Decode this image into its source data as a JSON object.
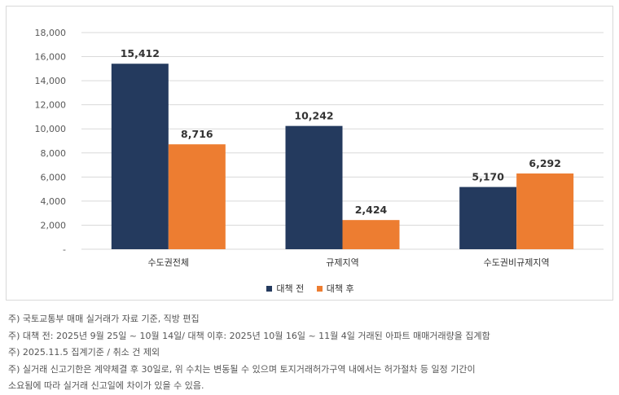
{
  "chart_data": {
    "type": "bar",
    "categories": [
      "수도권전체",
      "규제지역",
      "수도권비규제지역"
    ],
    "series": [
      {
        "name": "대책 전",
        "values": [
          15412,
          10242,
          5170
        ],
        "color": "#243a5e"
      },
      {
        "name": "대책 후",
        "values": [
          8716,
          2424,
          6292
        ],
        "color": "#ed7d31"
      }
    ],
    "data_labels": [
      [
        "15,412",
        "10,242",
        "5,170"
      ],
      [
        "8,716",
        "2,424",
        "6,292"
      ]
    ],
    "yticks": [
      "-",
      "2,000",
      "4,000",
      "6,000",
      "8,000",
      "10,000",
      "12,000",
      "14,000",
      "16,000",
      "18,000"
    ],
    "ylim": [
      0,
      18000
    ],
    "grid": true,
    "legend_position": "bottom"
  },
  "notes": [
    "주) 국토교통부 매매 실거래가 자료 기준, 직방 편집",
    "주) 대책 전: 2025년 9월 25일 ~ 10월 14일/ 대책 이후: 2025년 10월 16일 ~ 11월 4일 거래된 아파트 매매거래량을 집계함",
    "주) 2025.11.5 집계기준 / 취소 건 제외",
    "주) 실거래 신고기한은 계약체결 후 30일로, 위 수치는 변동될 수 있으며 토지거래허가구역 내에서는 허가절차 등 일정 기간이",
    "소요됨에 따라 실거래 신고일에 차이가 있을 수 있음."
  ]
}
